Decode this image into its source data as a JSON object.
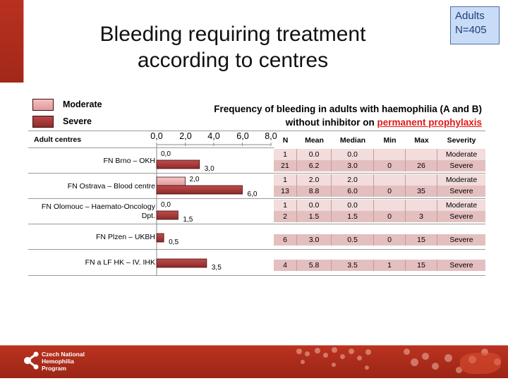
{
  "slide": {
    "title_line1": "Bleeding requiring treatment",
    "title_line2": "according to centres",
    "badge_line1": "Adults",
    "badge_line2": "N=405",
    "subtitle_line1": "Frequency of bleeding in adults with haemophilia (A and B)",
    "subtitle_line2_prefix": "without inhibitor on ",
    "subtitle_line2_highlight": "permanent prophylaxis",
    "highlight_color": "#e01818",
    "footer_line1": "Czech National",
    "footer_line2": "Hemophilia",
    "footer_line3": "Program"
  },
  "chart_data": {
    "type": "bar",
    "orientation": "horizontal",
    "xlim": [
      0,
      8
    ],
    "ticks": [
      "0,0",
      "2,0",
      "4,0",
      "6,0",
      "8,0"
    ],
    "categories_header": "Adult centres",
    "categories": [
      "FN Brno – OKH",
      "FN Ostrava – Blood centre",
      "FN Olomouc – Haemato-Oncology Dpt.",
      "FN Plzen – UKBH",
      "FN a LF HK – IV. IHK"
    ],
    "category_lines": [
      [
        "FN Brno – OKH"
      ],
      [
        "FN Ostrava – Blood centre"
      ],
      [
        "FN Olomouc – Haemato-Oncology",
        "Dpt."
      ],
      [
        "FN Plzen – UKBH"
      ],
      [
        "FN a LF HK – IV. IHK"
      ]
    ],
    "series": [
      {
        "name": "Moderate",
        "color": "#e8a3a3",
        "values": [
          0.0,
          2.0,
          0.0,
          null,
          null
        ],
        "labels": [
          "0,0",
          "2,0",
          "0,0",
          null,
          null
        ]
      },
      {
        "name": "Severe",
        "color": "#a83a3a",
        "values": [
          3.0,
          6.0,
          1.5,
          0.5,
          3.5
        ],
        "labels": [
          "3,0",
          "6,0",
          "1,5",
          "0,5",
          "3,5"
        ]
      }
    ]
  },
  "table": {
    "headers": [
      "N",
      "Mean",
      "Median",
      "Min",
      "Max",
      "Severity"
    ],
    "groups": [
      [
        [
          "1",
          "0.0",
          "0.0",
          "",
          "",
          "Moderate"
        ],
        [
          "21",
          "6.2",
          "3.0",
          "0",
          "26",
          "Severe"
        ]
      ],
      [
        [
          "1",
          "2.0",
          "2.0",
          "",
          "",
          "Moderate"
        ],
        [
          "13",
          "8.8",
          "6.0",
          "0",
          "35",
          "Severe"
        ]
      ],
      [
        [
          "1",
          "0.0",
          "0.0",
          "",
          "",
          "Moderate"
        ],
        [
          "2",
          "1.5",
          "1.5",
          "0",
          "3",
          "Severe"
        ]
      ],
      [
        [
          "6",
          "3.0",
          "0.5",
          "0",
          "15",
          "Severe"
        ]
      ],
      [
        [
          "4",
          "5.8",
          "3.5",
          "1",
          "15",
          "Severe"
        ]
      ]
    ]
  }
}
